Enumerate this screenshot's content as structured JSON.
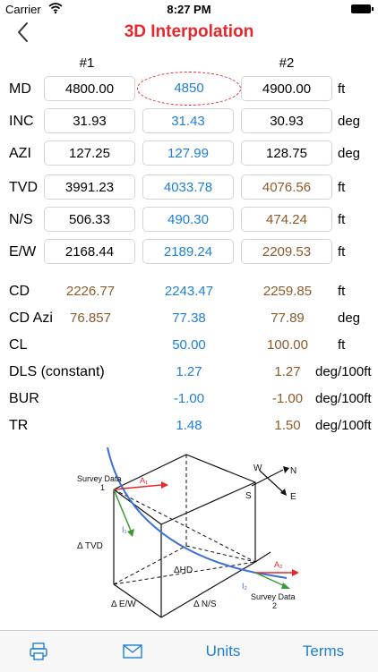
{
  "status": {
    "carrier": "Carrier",
    "time": "8:27 PM"
  },
  "nav": {
    "title": "3D Interpolation"
  },
  "columns": {
    "first": "#1",
    "second": "#2"
  },
  "rows": [
    {
      "label": "MD",
      "v1": "4800.00",
      "vi": "4850",
      "v2": "4900.00",
      "unit": "ft"
    },
    {
      "label": "INC",
      "v1": "31.93",
      "vi": "31.43",
      "v2": "30.93",
      "unit": "deg"
    },
    {
      "label": "AZI",
      "v1": "127.25",
      "vi": "127.99",
      "v2": "128.75",
      "unit": "deg"
    },
    {
      "label": "TVD",
      "v1": "3991.23",
      "vi": "4033.78",
      "v2": "4076.56",
      "unit": "ft"
    },
    {
      "label": "N/S",
      "v1": "506.33",
      "vi": "490.30",
      "v2": "474.24",
      "unit": "ft"
    },
    {
      "label": "E/W",
      "v1": "2168.44",
      "vi": "2189.24",
      "v2": "2209.53",
      "unit": "ft"
    },
    {
      "label": "CD",
      "v1": "2226.77",
      "vi": "2243.47",
      "v2": "2259.85",
      "unit": "ft"
    },
    {
      "label": "CD Azi",
      "v1": "76.857",
      "vi": "77.38",
      "v2": "77.89",
      "unit": "deg"
    },
    {
      "label": "CL",
      "v1": "",
      "vi": "50.00",
      "v2": "100.00",
      "unit": "ft"
    },
    {
      "label": "DLS (constant)",
      "v1": "",
      "vi": "1.27",
      "v2": "1.27",
      "unit": "deg/100ft"
    },
    {
      "label": "BUR",
      "v1": "",
      "vi": "-1.00",
      "v2": "-1.00",
      "unit": "deg/100ft"
    },
    {
      "label": "TR",
      "v1": "",
      "vi": "1.48",
      "v2": "1.50",
      "unit": "deg/100ft"
    }
  ],
  "diagram": {
    "survey1": "Survey Data",
    "survey1_num": "1",
    "survey2": "Survey Data",
    "survey2_num": "2",
    "a1": "A₁",
    "i1": "I₁",
    "a2": "A₂",
    "i2": "I₂",
    "tvd": "Δ TVD",
    "hd": "ΔHD",
    "ew": "Δ E/W",
    "ns": "Δ N/S",
    "compass": {
      "w": "W",
      "n": "N",
      "s": "S",
      "e": "E"
    }
  },
  "tabs": {
    "units": "Units",
    "terms": "Terms"
  },
  "colors": {
    "title": "#e8262b",
    "accent": "#1f7fd6",
    "computed": "#8b5a2b",
    "oval": "#e8262b"
  }
}
